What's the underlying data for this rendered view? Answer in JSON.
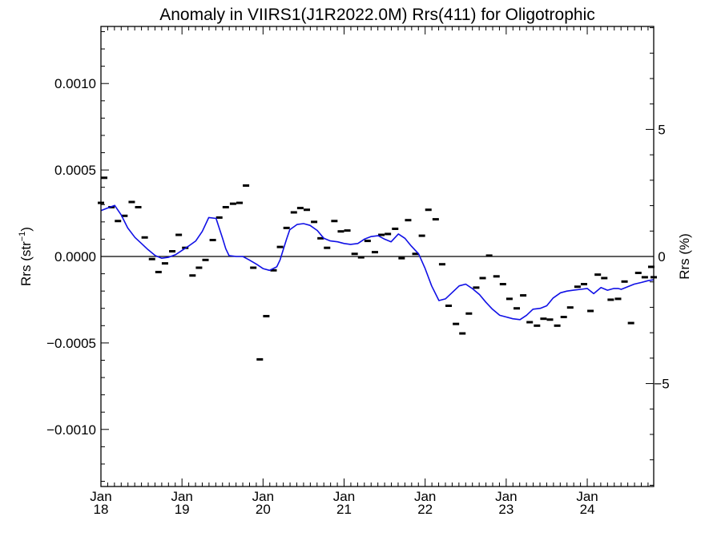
{
  "chart_data": {
    "type": "line",
    "title": "Anomaly in VIIRS1(J1R2022.0M) Rrs(411) for Oligotrophic",
    "ylabel_left": {
      "base": "Rrs (str",
      "sup": "−1",
      "end": ")"
    },
    "ylabel_right": "Rrs (%)",
    "xlim": [
      2018.0,
      2024.82
    ],
    "ylim": [
      -0.00133,
      0.00133
    ],
    "ylim_right": [
      -9.05,
      9.05
    ],
    "grid": false,
    "zero_line": true,
    "x_ticks": [
      {
        "value": 2018,
        "month": "Jan",
        "year": "18"
      },
      {
        "value": 2019,
        "month": "Jan",
        "year": "19"
      },
      {
        "value": 2020,
        "month": "Jan",
        "year": "20"
      },
      {
        "value": 2021,
        "month": "Jan",
        "year": "21"
      },
      {
        "value": 2022,
        "month": "Jan",
        "year": "22"
      },
      {
        "value": 2023,
        "month": "Jan",
        "year": "23"
      },
      {
        "value": 2024,
        "month": "Jan",
        "year": "24"
      }
    ],
    "y_ticks_left": [
      {
        "value": 0.001,
        "label": "0.0010"
      },
      {
        "value": 0.0005,
        "label": "0.0005"
      },
      {
        "value": 0.0,
        "label": "0.0000"
      },
      {
        "value": -0.0005,
        "label": "−0.0005"
      },
      {
        "value": -0.001,
        "label": "−0.0010"
      }
    ],
    "y_ticks_right": [
      {
        "value": 5,
        "label": "5"
      },
      {
        "value": 0,
        "label": "0"
      },
      {
        "value": -5,
        "label": "−5"
      }
    ],
    "series": [
      {
        "kind": "monthly-anomaly-markers",
        "color": "#000000",
        "x": [
          2018.0,
          2018.04,
          2018.13,
          2018.21,
          2018.29,
          2018.38,
          2018.46,
          2018.54,
          2018.63,
          2018.71,
          2018.79,
          2018.88,
          2018.96,
          2019.04,
          2019.13,
          2019.21,
          2019.29,
          2019.38,
          2019.46,
          2019.54,
          2019.63,
          2019.71,
          2019.79,
          2019.88,
          2019.96,
          2020.04,
          2020.13,
          2020.21,
          2020.29,
          2020.38,
          2020.46,
          2020.54,
          2020.63,
          2020.71,
          2020.79,
          2020.88,
          2020.96,
          2021.04,
          2021.13,
          2021.21,
          2021.29,
          2021.38,
          2021.46,
          2021.54,
          2021.63,
          2021.71,
          2021.79,
          2021.88,
          2021.96,
          2022.04,
          2022.13,
          2022.21,
          2022.29,
          2022.38,
          2022.46,
          2022.54,
          2022.63,
          2022.71,
          2022.79,
          2022.88,
          2022.96,
          2023.04,
          2023.13,
          2023.21,
          2023.29,
          2023.38,
          2023.46,
          2023.54,
          2023.63,
          2023.71,
          2023.79,
          2023.88,
          2023.96,
          2024.04,
          2024.13,
          2024.21,
          2024.29,
          2024.38,
          2024.46,
          2024.54,
          2024.63,
          2024.71,
          2024.79,
          2024.82
        ],
        "values": [
          0.00031,
          0.000455,
          0.000285,
          0.000205,
          0.000235,
          0.000315,
          0.000285,
          0.00011,
          -1.5e-05,
          -9e-05,
          -4e-05,
          3e-05,
          0.000125,
          5e-05,
          -0.00011,
          -6.5e-05,
          -2e-05,
          9.5e-05,
          0.000225,
          0.000285,
          0.000305,
          0.00031,
          0.00041,
          -6.5e-05,
          -0.000595,
          -0.000345,
          -8e-05,
          5.5e-05,
          0.000165,
          0.000255,
          0.00028,
          0.00027,
          0.0002,
          0.000105,
          5e-05,
          0.000205,
          0.000145,
          0.00015,
          1.5e-05,
          -5e-06,
          9e-05,
          2.5e-05,
          0.000125,
          0.00013,
          0.00016,
          -1e-05,
          0.00021,
          1.5e-05,
          0.00012,
          0.00027,
          0.000215,
          -4.5e-05,
          -0.000285,
          -0.00039,
          -0.000445,
          -0.00033,
          -0.00018,
          -0.000125,
          5e-06,
          -0.000115,
          -0.00016,
          -0.000245,
          -0.0003,
          -0.000225,
          -0.00038,
          -0.0004,
          -0.00036,
          -0.000365,
          -0.0004,
          -0.00035,
          -0.000295,
          -0.000175,
          -0.00016,
          -0.000315,
          -0.000105,
          -0.000125,
          -0.00025,
          -0.000245,
          -0.000145,
          -0.000385,
          -9.5e-05,
          -0.00012,
          -6e-05,
          -0.00012
        ]
      },
      {
        "kind": "smoothed-anomaly-line",
        "color": "#1010e6",
        "x": [
          2018.0,
          2018.08,
          2018.17,
          2018.25,
          2018.33,
          2018.42,
          2018.5,
          2018.58,
          2018.67,
          2018.75,
          2018.83,
          2018.92,
          2019.0,
          2019.08,
          2019.17,
          2019.25,
          2019.33,
          2019.42,
          2019.5,
          2019.54,
          2019.58,
          2019.67,
          2019.75,
          2019.83,
          2019.92,
          2020.0,
          2020.08,
          2020.17,
          2020.21,
          2020.25,
          2020.29,
          2020.33,
          2020.42,
          2020.5,
          2020.58,
          2020.67,
          2020.75,
          2020.83,
          2020.92,
          2021.0,
          2021.08,
          2021.17,
          2021.25,
          2021.33,
          2021.42,
          2021.5,
          2021.58,
          2021.67,
          2021.75,
          2021.83,
          2021.92,
          2022.0,
          2022.08,
          2022.17,
          2022.25,
          2022.33,
          2022.42,
          2022.5,
          2022.58,
          2022.67,
          2022.75,
          2022.83,
          2022.92,
          2023.0,
          2023.08,
          2023.17,
          2023.25,
          2023.33,
          2023.42,
          2023.5,
          2023.58,
          2023.67,
          2023.75,
          2023.83,
          2023.92,
          2024.0,
          2024.08,
          2024.17,
          2024.25,
          2024.33,
          2024.38,
          2024.42,
          2024.5,
          2024.58,
          2024.67,
          2024.75,
          2024.82
        ],
        "values": [
          0.000265,
          0.00028,
          0.000295,
          0.00024,
          0.000165,
          0.00011,
          7.5e-05,
          4e-05,
          5e-06,
          -1e-05,
          -5e-06,
          1e-05,
          3.5e-05,
          6e-05,
          9e-05,
          0.000145,
          0.000225,
          0.00022,
          0.000105,
          4.5e-05,
          5e-06,
          0.0,
          0.0,
          -2e-05,
          -4.5e-05,
          -7e-05,
          -8e-05,
          -6e-05,
          -2e-05,
          4e-05,
          0.0001,
          0.000155,
          0.000185,
          0.00019,
          0.00018,
          0.00015,
          0.000105,
          9e-05,
          8.5e-05,
          7.5e-05,
          7e-05,
          7.5e-05,
          0.0001,
          0.000115,
          0.00012,
          0.0001,
          8.5e-05,
          0.00013,
          0.000105,
          6e-05,
          1.5e-05,
          -7e-05,
          -0.00017,
          -0.000255,
          -0.000245,
          -0.00021,
          -0.00017,
          -0.00016,
          -0.000185,
          -0.00022,
          -0.000265,
          -0.000305,
          -0.00034,
          -0.00035,
          -0.00036,
          -0.000365,
          -0.00034,
          -0.000305,
          -0.0003,
          -0.000285,
          -0.00024,
          -0.00021,
          -0.0002,
          -0.000195,
          -0.00019,
          -0.000185,
          -0.000215,
          -0.00018,
          -0.000195,
          -0.000185,
          -0.000185,
          -0.00019,
          -0.000175,
          -0.00016,
          -0.00015,
          -0.00014,
          -0.000135
        ]
      }
    ]
  }
}
